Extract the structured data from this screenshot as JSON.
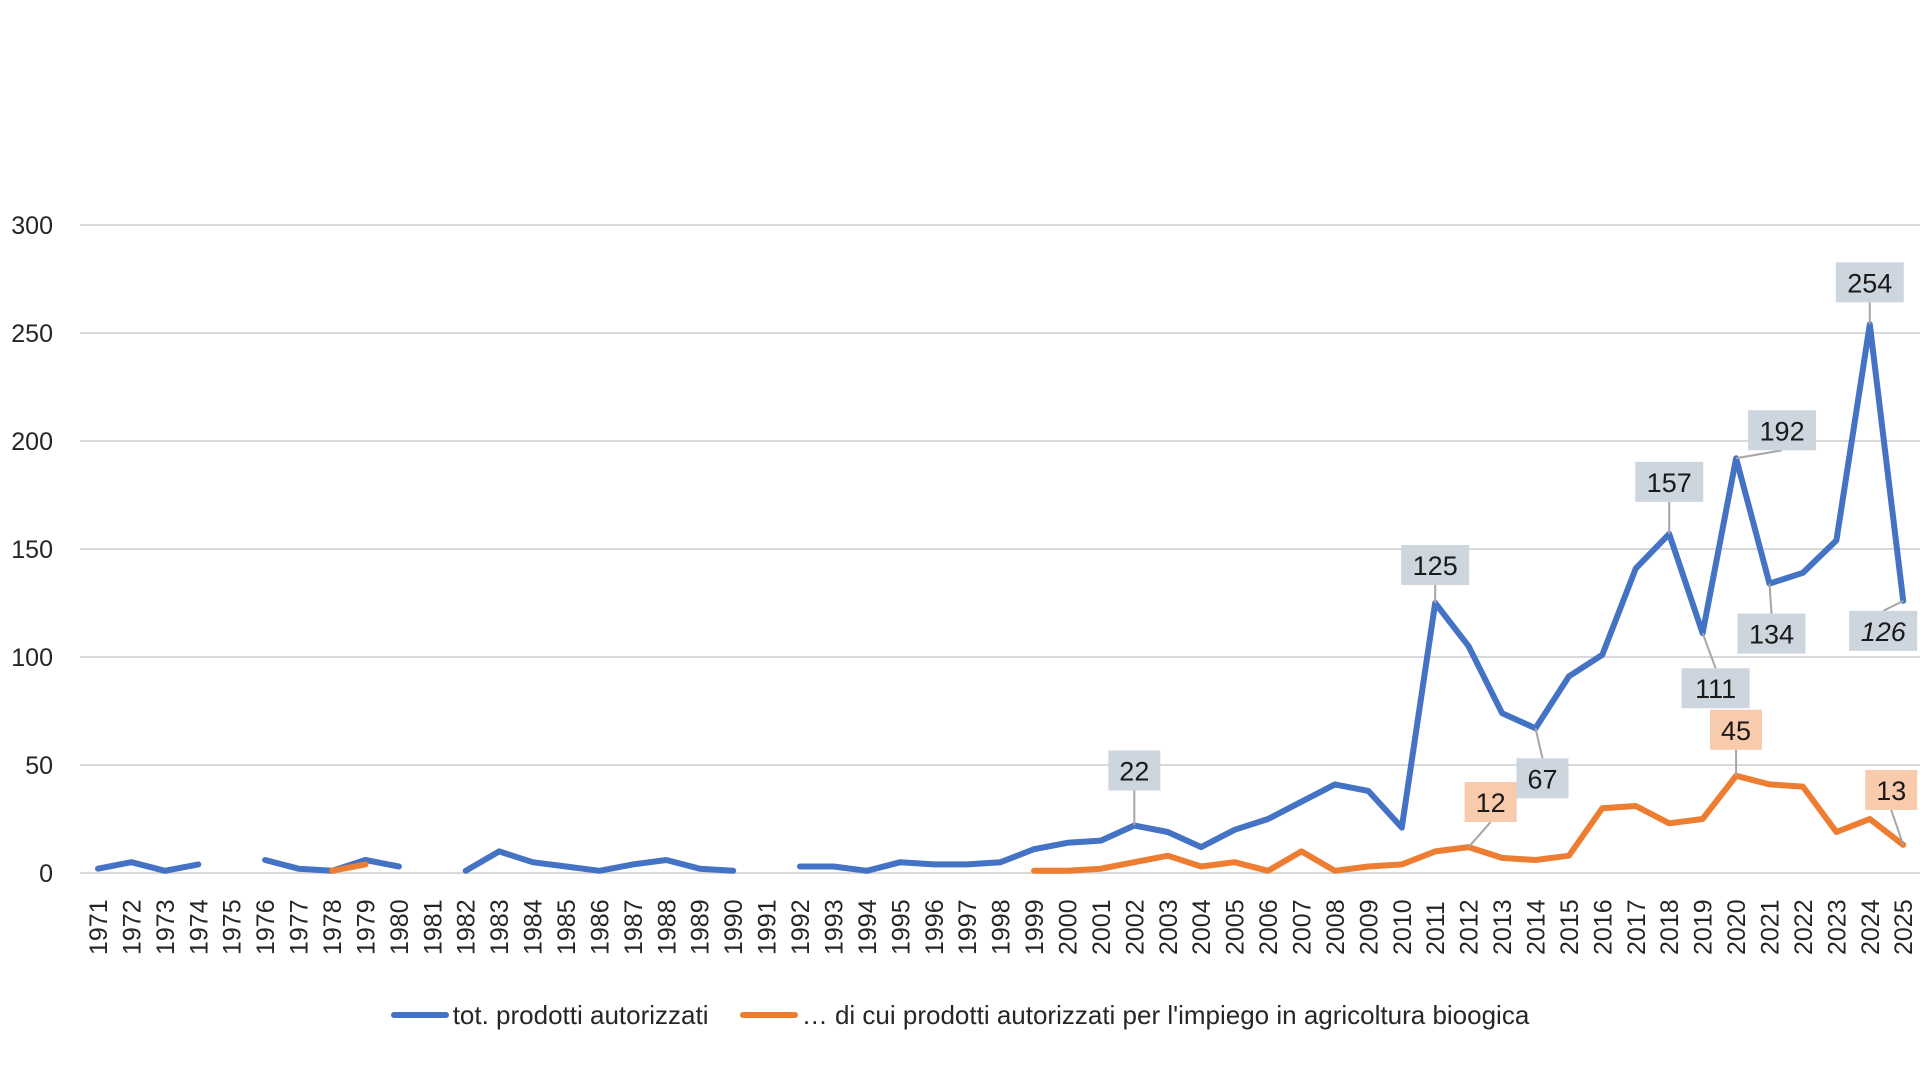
{
  "chart_data": {
    "type": "line",
    "title": "",
    "xlabel": "",
    "ylabel": "",
    "ylim": [
      0,
      300
    ],
    "yticks": [
      0,
      50,
      100,
      150,
      200,
      250,
      300
    ],
    "grid": true,
    "legend_position": "bottom",
    "x": [
      "1971",
      "1972",
      "1973",
      "1974",
      "1975",
      "1976",
      "1977",
      "1978",
      "1979",
      "1980",
      "1981",
      "1982",
      "1983",
      "1984",
      "1985",
      "1986",
      "1987",
      "1988",
      "1989",
      "1990",
      "1991",
      "1992",
      "1993",
      "1994",
      "1995",
      "1996",
      "1997",
      "1998",
      "1999",
      "2000",
      "2001",
      "2002",
      "2003",
      "2004",
      "2005",
      "2006",
      "2007",
      "2008",
      "2009",
      "2010",
      "2011",
      "2012",
      "2013",
      "2014",
      "2015",
      "2016",
      "2017",
      "2018",
      "2019",
      "2020",
      "2021",
      "2022",
      "2023",
      "2024",
      "2025"
    ],
    "series": [
      {
        "name": "tot. prodotti autorizzati",
        "color": "#4472C4",
        "values": [
          2,
          5,
          1,
          4,
          null,
          6,
          2,
          1,
          6,
          3,
          null,
          1,
          10,
          5,
          3,
          1,
          4,
          6,
          2,
          1,
          null,
          3,
          3,
          1,
          5,
          4,
          4,
          5,
          11,
          14,
          15,
          22,
          19,
          12,
          20,
          25,
          33,
          41,
          38,
          21,
          125,
          105,
          74,
          67,
          91,
          101,
          141,
          157,
          111,
          192,
          134,
          139,
          154,
          254,
          126
        ]
      },
      {
        "name": "… di cui prodotti autorizzati per l'impiego in agricoltura bioogica",
        "color": "#ED7D31",
        "values": [
          null,
          null,
          null,
          null,
          null,
          null,
          null,
          1,
          4,
          null,
          null,
          null,
          null,
          null,
          null,
          null,
          null,
          null,
          null,
          null,
          null,
          null,
          null,
          null,
          null,
          null,
          null,
          null,
          1,
          1,
          2,
          5,
          8,
          3,
          5,
          1,
          10,
          1,
          3,
          4,
          10,
          12,
          7,
          6,
          8,
          30,
          31,
          23,
          25,
          45,
          41,
          40,
          19,
          25,
          13
        ]
      }
    ],
    "annotations": [
      {
        "series": 0,
        "x": "2002",
        "label": "22",
        "italic": false
      },
      {
        "series": 0,
        "x": "2011",
        "label": "125",
        "italic": false
      },
      {
        "series": 0,
        "x": "2014",
        "label": "67",
        "italic": false
      },
      {
        "series": 0,
        "x": "2018",
        "label": "157",
        "italic": false
      },
      {
        "series": 0,
        "x": "2019",
        "label": "111",
        "italic": false
      },
      {
        "series": 0,
        "x": "2020",
        "label": "192",
        "italic": false
      },
      {
        "series": 0,
        "x": "2021",
        "label": "134",
        "italic": false
      },
      {
        "series": 0,
        "x": "2024",
        "label": "254",
        "italic": false
      },
      {
        "series": 0,
        "x": "2025",
        "label": "126",
        "italic": true
      },
      {
        "series": 1,
        "x": "2012",
        "label": "12",
        "italic": false
      },
      {
        "series": 1,
        "x": "2020",
        "label": "45",
        "italic": false
      },
      {
        "series": 1,
        "x": "2025",
        "label": "13",
        "italic": false
      }
    ],
    "annotation_colors": {
      "blue_label_bg": "#CDD5DF",
      "orange_label_bg": "#F8CBAD",
      "leader_line": "#A6A6A6"
    }
  },
  "legend": {
    "items": [
      {
        "label": "tot. prodotti autorizzati",
        "color": "#4472C4"
      },
      {
        "label": "… di cui prodotti autorizzati per l'impiego in agricoltura bioogica",
        "color": "#ED7D31"
      }
    ]
  }
}
